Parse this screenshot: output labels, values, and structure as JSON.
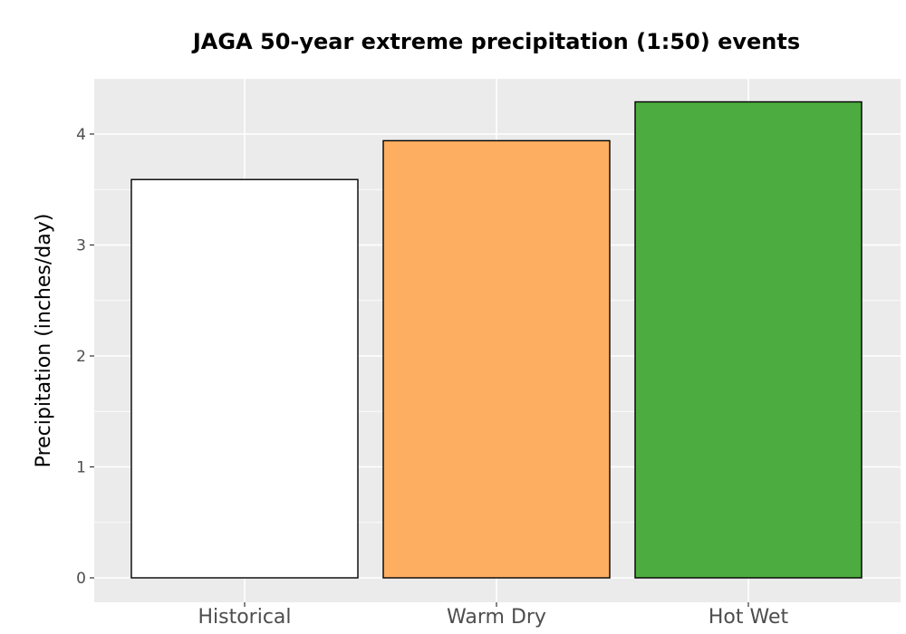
{
  "chart_data": {
    "type": "bar",
    "title": "JAGA 50-year extreme precipitation (1:50) events",
    "xlabel": "",
    "ylabel": "Precipitation (inches/day)",
    "categories": [
      "Historical",
      "Warm Dry",
      "Hot Wet"
    ],
    "values": [
      3.59,
      3.94,
      4.29
    ],
    "colors": [
      "#ffffff",
      "#fdae61",
      "#4dac3f"
    ],
    "yticks": [
      0,
      1,
      2,
      3,
      4
    ],
    "ylim": [
      -0.22,
      4.5
    ],
    "grid": true,
    "background": "#ebebeb",
    "bar_outline": "#000000"
  }
}
